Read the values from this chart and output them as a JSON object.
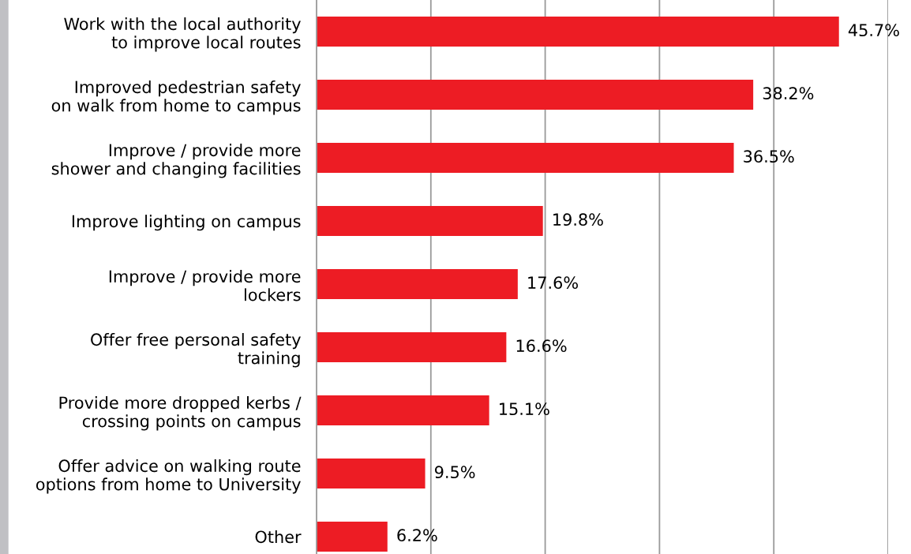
{
  "chart_data": {
    "type": "bar",
    "orientation": "horizontal",
    "categories": [
      "Work with the local authority\nto improve local routes",
      "Improved pedestrian safety\non walk from home to campus",
      "Improve / provide more\nshower and changing facilities",
      "Improve lighting on campus",
      "Improve / provide more\nlockers",
      "Offer free personal safety\ntraining",
      "Provide more dropped kerbs /\ncrossing points on campus",
      "Offer advice on walking route\noptions from home to University",
      "Other"
    ],
    "values": [
      45.7,
      38.2,
      36.5,
      19.8,
      17.6,
      16.6,
      15.1,
      9.5,
      6.2
    ],
    "value_labels": [
      "45.7%",
      "38.2%",
      "36.5%",
      "19.8%",
      "17.6%",
      "16.6%",
      "15.1%",
      "9.5%",
      "6.2%"
    ],
    "color": "#ed1c24",
    "xlim": [
      0,
      50
    ],
    "xticks": [
      {
        "value": 10,
        "label": null
      },
      {
        "value": 20,
        "label": null
      },
      {
        "value": 30,
        "label": null
      },
      {
        "value": 40,
        "label": null
      },
      {
        "value": 50,
        "label": null
      }
    ],
    "grid": "x",
    "legend": false
  }
}
